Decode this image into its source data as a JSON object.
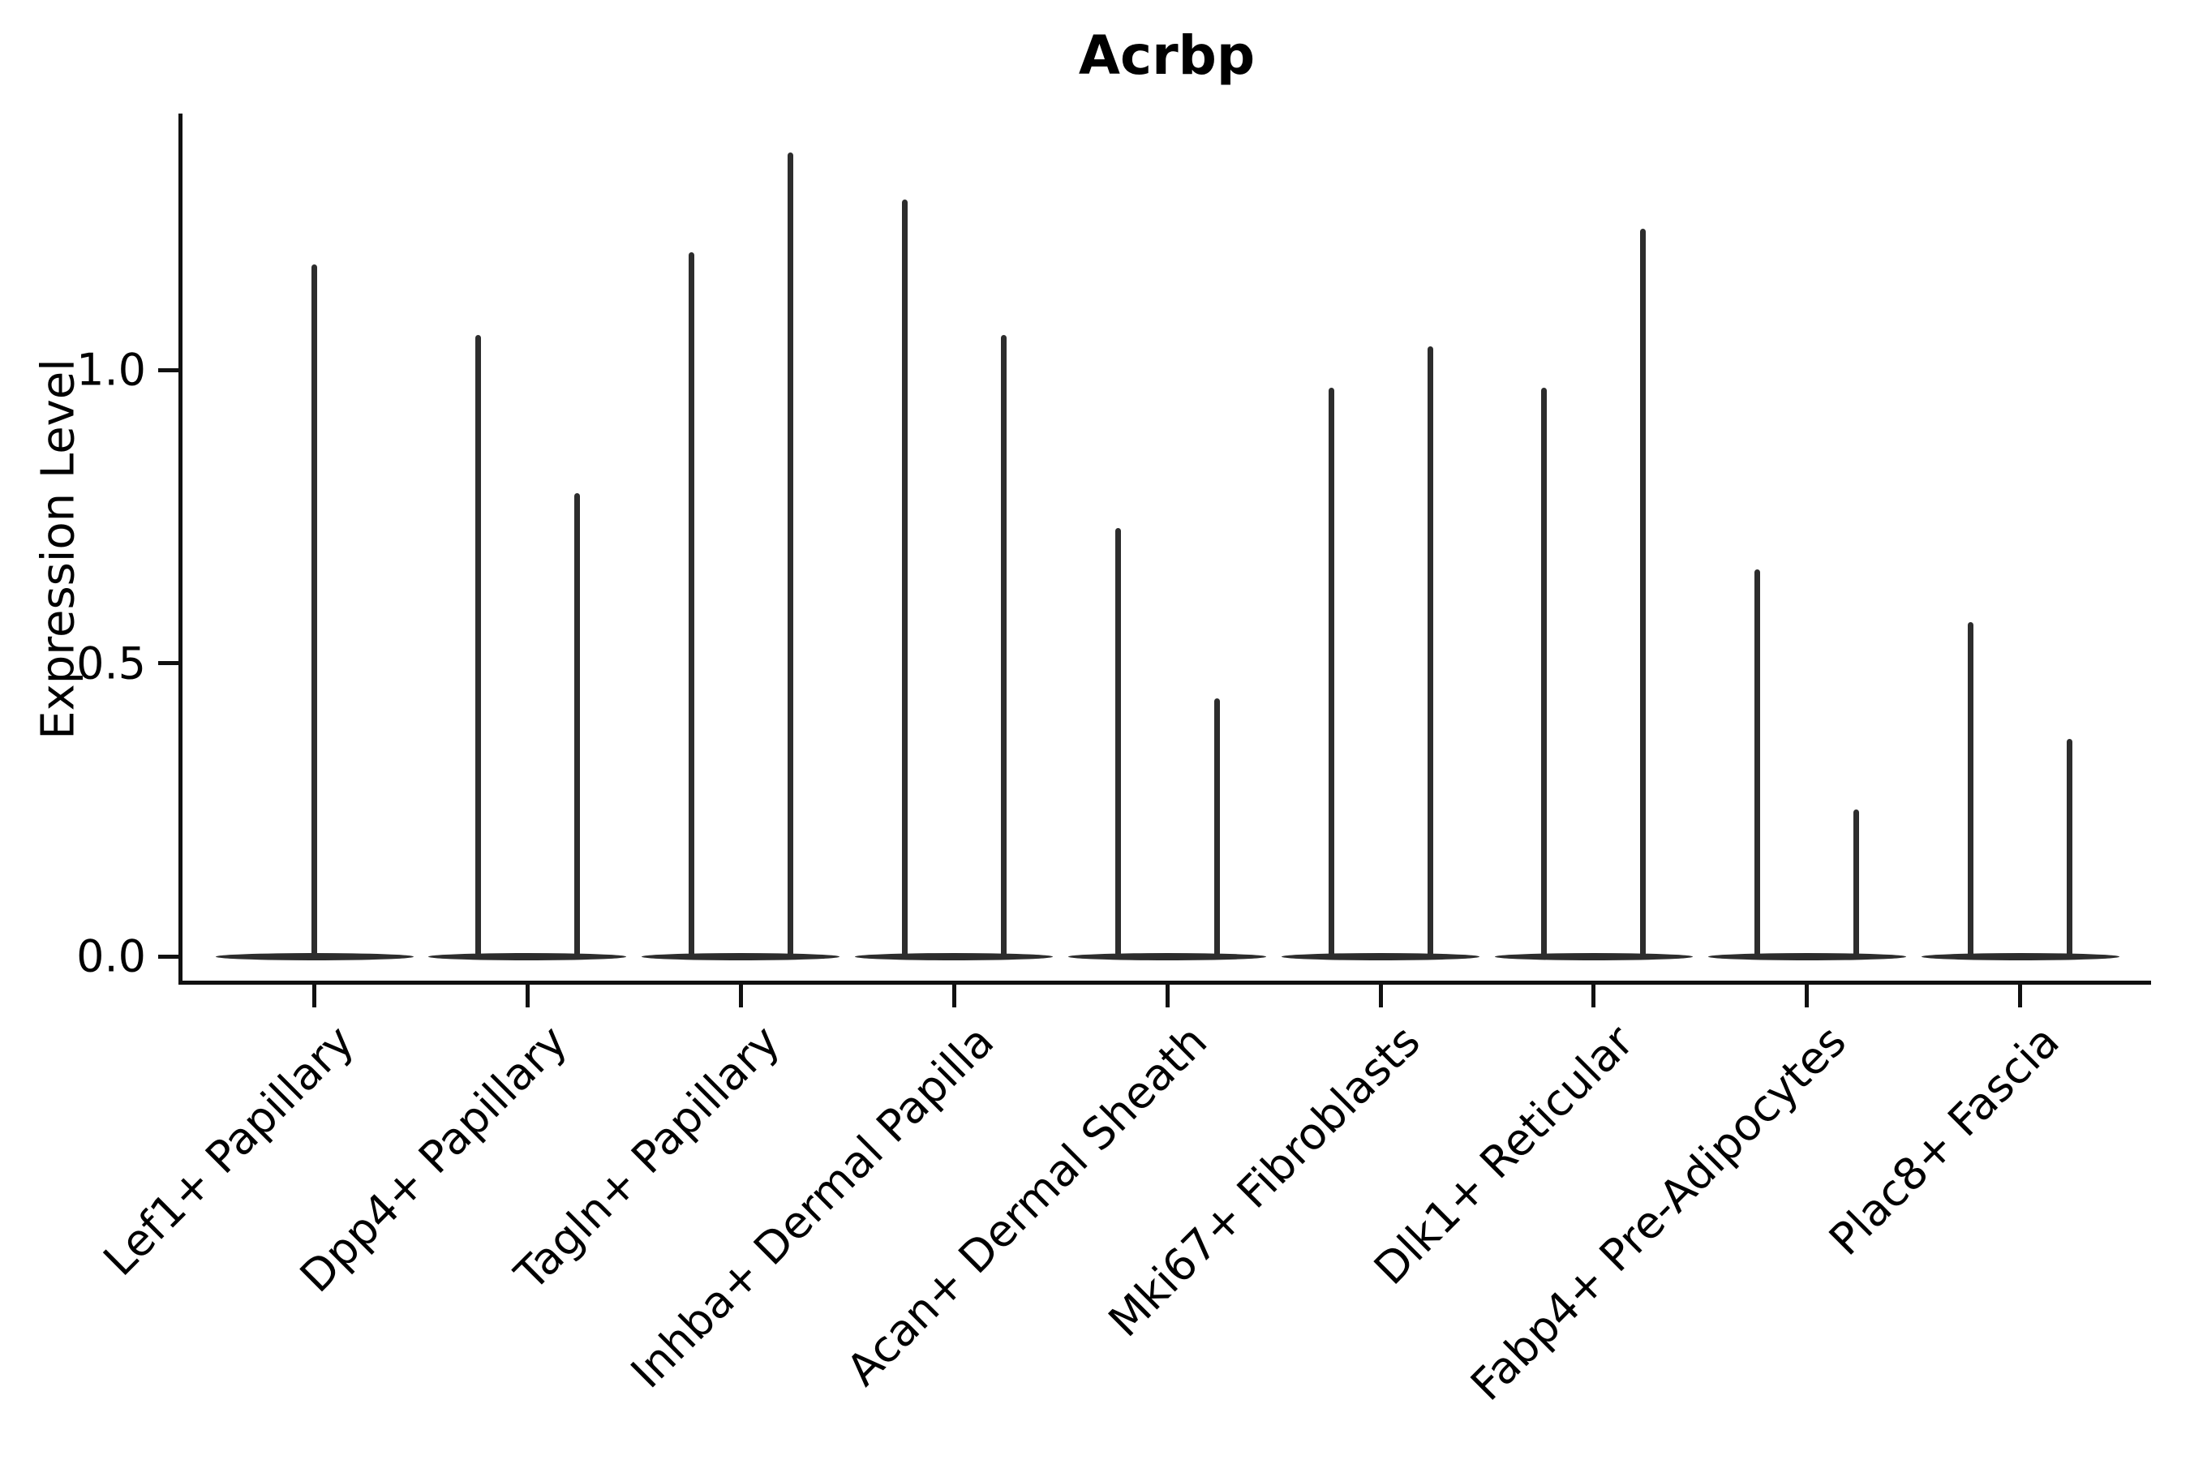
{
  "chart_data": {
    "type": "violin",
    "title": "Acrbp",
    "ylabel": "Expression Level",
    "xlabel": "",
    "ylim": [
      0,
      1.44
    ],
    "grid": false,
    "legend": "none",
    "yticks": [
      {
        "label": "0.0",
        "value": 0.0
      },
      {
        "label": "0.5",
        "value": 0.5
      },
      {
        "label": "1.0",
        "value": 1.0
      }
    ],
    "categories": [
      "Lef1+ Papillary",
      "Dpp4+ Papillary",
      "Tagln+ Papillary",
      "Inhba+ Dermal Papilla",
      "Acan+ Dermal Sheath",
      "Mki67+ Fibroblasts",
      "Dlk1+ Reticular",
      "Fabp4+ Pre-Adipocytes",
      "Plac8+ Fascia"
    ],
    "violins": [
      {
        "category": "Lef1+ Papillary",
        "spikes": [
          {
            "position": "center",
            "max_expression": 1.18
          }
        ]
      },
      {
        "category": "Dpp4+ Papillary",
        "spikes": [
          {
            "position": "left",
            "max_expression": 1.06
          },
          {
            "position": "right",
            "max_expression": 0.79
          }
        ]
      },
      {
        "category": "Tagln+ Papillary",
        "spikes": [
          {
            "position": "left",
            "max_expression": 1.2
          },
          {
            "position": "right",
            "max_expression": 1.37
          }
        ]
      },
      {
        "category": "Inhba+ Dermal Papilla",
        "spikes": [
          {
            "position": "left",
            "max_expression": 1.29
          },
          {
            "position": "right",
            "max_expression": 1.06
          }
        ]
      },
      {
        "category": "Acan+ Dermal Sheath",
        "spikes": [
          {
            "position": "left",
            "max_expression": 0.73
          },
          {
            "position": "right",
            "max_expression": 0.44
          }
        ]
      },
      {
        "category": "Mki67+ Fibroblasts",
        "spikes": [
          {
            "position": "left",
            "max_expression": 0.97
          },
          {
            "position": "right",
            "max_expression": 1.04
          }
        ]
      },
      {
        "category": "Dlk1+ Reticular",
        "spikes": [
          {
            "position": "left",
            "max_expression": 0.97
          },
          {
            "position": "right",
            "max_expression": 1.24
          }
        ]
      },
      {
        "category": "Fabp4+ Pre-Adipocytes",
        "spikes": [
          {
            "position": "left",
            "max_expression": 0.66
          },
          {
            "position": "right",
            "max_expression": 0.25
          }
        ]
      },
      {
        "category": "Plac8+ Fascia",
        "spikes": [
          {
            "position": "left",
            "max_expression": 0.57
          },
          {
            "position": "right",
            "max_expression": 0.37
          }
        ]
      }
    ],
    "colors": {
      "violin": "#2d2d2d",
      "axis": "#111111",
      "text": "#000000",
      "background": "#ffffff"
    }
  }
}
